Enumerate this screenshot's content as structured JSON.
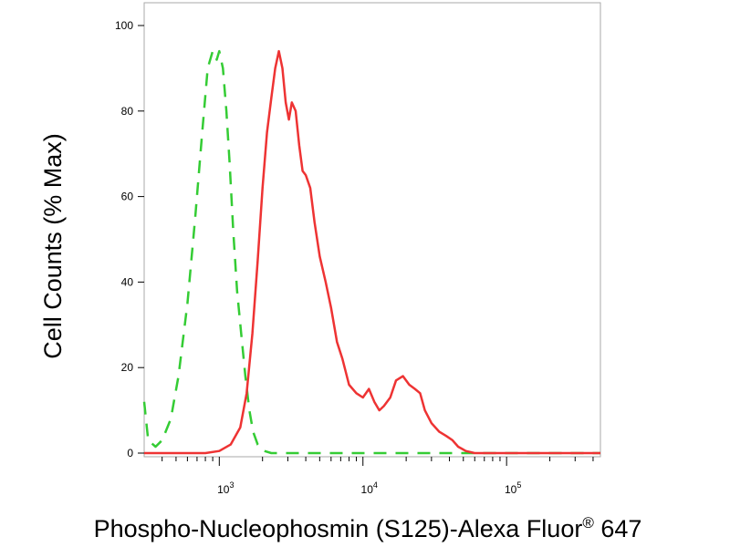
{
  "chart_data": {
    "type": "line",
    "title": "",
    "xlabel": "Phospho-Nucleophosmin (S125)-Alexa Fluor",
    "xlabel_sup": "®",
    "xlabel_suffix": " 647",
    "ylabel": "Cell Counts (% Max)",
    "x_scale": "log",
    "xlim": [
      300,
      450000
    ],
    "ylim": [
      0,
      100
    ],
    "x_ticks": [
      {
        "base": "10",
        "exp": "3",
        "value": 1000
      },
      {
        "base": "10",
        "exp": "4",
        "value": 10000
      },
      {
        "base": "10",
        "exp": "5",
        "value": 100000
      }
    ],
    "y_ticks": [
      "0",
      "20",
      "40",
      "60",
      "80",
      "100"
    ],
    "y_tick_values": [
      0,
      20,
      40,
      60,
      80,
      100
    ],
    "series": [
      {
        "color": "#34cc34",
        "style": "dashed",
        "x": [
          300,
          320,
          360,
          400,
          460,
          520,
          600,
          680,
          760,
          830,
          900,
          960,
          1000,
          1060,
          1120,
          1180,
          1250,
          1330,
          1420,
          1520,
          1620,
          1720,
          1850,
          1950,
          2100,
          2300,
          3000,
          10000,
          50000,
          450000
        ],
        "y": [
          12,
          3,
          1.5,
          3,
          8,
          18,
          35,
          55,
          75,
          90,
          94,
          92,
          94,
          90,
          80,
          68,
          52,
          38,
          28,
          18,
          10,
          5,
          2,
          1,
          0.4,
          0,
          0,
          0,
          0,
          0
        ]
      },
      {
        "color": "#ee3333",
        "style": "solid",
        "x": [
          300,
          800,
          1000,
          1200,
          1400,
          1550,
          1700,
          1850,
          2000,
          2150,
          2300,
          2450,
          2600,
          2750,
          2900,
          3050,
          3200,
          3400,
          3600,
          3800,
          4000,
          4300,
          4600,
          5000,
          5500,
          6000,
          6600,
          7200,
          8000,
          9000,
          10000,
          11000,
          12000,
          13000,
          14000,
          15500,
          17000,
          19000,
          21000,
          23000,
          25000,
          27000,
          30000,
          34000,
          38000,
          42000,
          46000,
          52000,
          60000,
          70000,
          100000,
          450000
        ],
        "y": [
          0,
          0,
          0.5,
          2,
          6,
          14,
          28,
          45,
          62,
          75,
          83,
          90,
          94,
          90,
          82,
          78,
          82,
          80,
          72,
          66,
          65,
          62,
          54,
          46,
          40,
          34,
          26,
          22,
          16,
          14,
          13,
          15,
          12,
          10,
          11,
          13,
          17,
          18,
          16,
          15,
          14,
          10,
          7,
          5,
          4,
          3,
          1.5,
          0.5,
          0,
          0,
          0,
          0
        ]
      }
    ]
  }
}
